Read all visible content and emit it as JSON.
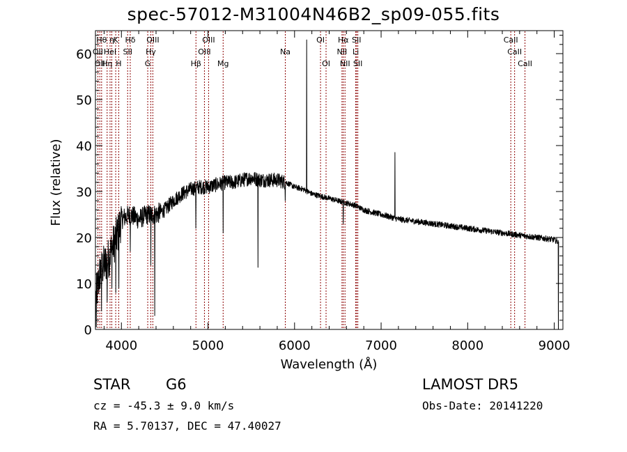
{
  "chart_data": {
    "type": "line",
    "title": "spec-57012-M31004N46B2_sp09-055.fits",
    "xlabel": "Wavelength (Å)",
    "ylabel": "Flux (relative)",
    "xlim": [
      3700,
      9100
    ],
    "ylim": [
      0,
      65
    ],
    "xticks": [
      4000,
      5000,
      6000,
      7000,
      8000,
      9000
    ],
    "yticks": [
      0,
      10,
      20,
      30,
      40,
      50,
      60
    ],
    "grid": false,
    "line_color": "#000000",
    "marker_color": "#8b0000",
    "continuum_knots": [
      [
        3705,
        7
      ],
      [
        3760,
        13
      ],
      [
        3840,
        15
      ],
      [
        3900,
        18
      ],
      [
        3960,
        21
      ],
      [
        4000,
        24
      ],
      [
        4100,
        25
      ],
      [
        4200,
        24
      ],
      [
        4300,
        25
      ],
      [
        4400,
        25
      ],
      [
        4500,
        26
      ],
      [
        4600,
        28
      ],
      [
        4700,
        29.5
      ],
      [
        4800,
        30.5
      ],
      [
        4900,
        31
      ],
      [
        5000,
        31
      ],
      [
        5100,
        31.5
      ],
      [
        5200,
        32
      ],
      [
        5300,
        32
      ],
      [
        5400,
        32.5
      ],
      [
        5500,
        33
      ],
      [
        5600,
        32.5
      ],
      [
        5700,
        32.5
      ],
      [
        5800,
        32.5
      ],
      [
        5900,
        32
      ],
      [
        6000,
        31
      ],
      [
        6100,
        30.5
      ],
      [
        6200,
        29.5
      ],
      [
        6300,
        29
      ],
      [
        6400,
        28.5
      ],
      [
        6500,
        28
      ],
      [
        6600,
        27.5
      ],
      [
        6700,
        27
      ],
      [
        6800,
        26
      ],
      [
        6900,
        25.5
      ],
      [
        7000,
        25
      ],
      [
        7100,
        24.5
      ],
      [
        7200,
        24
      ],
      [
        7400,
        23.5
      ],
      [
        7600,
        23
      ],
      [
        7800,
        22.5
      ],
      [
        8000,
        22
      ],
      [
        8200,
        21.5
      ],
      [
        8400,
        21
      ],
      [
        8600,
        20.5
      ],
      [
        8800,
        20
      ],
      [
        9000,
        19.5
      ],
      [
        9050,
        19
      ]
    ],
    "features": [
      {
        "x": 3710,
        "y": 0.5
      },
      {
        "x": 3770,
        "y": 4
      },
      {
        "x": 3835,
        "y": 6
      },
      {
        "x": 3889,
        "y": 9
      },
      {
        "x": 3934,
        "y": 8
      },
      {
        "x": 3969,
        "y": 9
      },
      {
        "x": 4102,
        "y": 17
      },
      {
        "x": 4340,
        "y": 14
      },
      {
        "x": 4385,
        "y": 3
      },
      {
        "x": 4861,
        "y": 22
      },
      {
        "x": 5175,
        "y": 21
      },
      {
        "x": 5577,
        "y": 13.5
      },
      {
        "x": 5893,
        "y": 28
      },
      {
        "x": 6140,
        "y": 63
      },
      {
        "x": 6563,
        "y": 23
      },
      {
        "x": 7160,
        "y": 38.5
      },
      {
        "x": 9048,
        "y": 0
      }
    ],
    "line_markers": [
      {
        "wavelength": 3728,
        "row": 2,
        "label": "OII"
      },
      {
        "wavelength": 3750,
        "row": 3,
        "label": "OII"
      },
      {
        "wavelength": 3771,
        "row": 1,
        "label": "Hθ"
      },
      {
        "wavelength": 3835,
        "row": 3,
        "label": "Hη"
      },
      {
        "wavelength": 3869,
        "row": 2,
        "label": "HeI"
      },
      {
        "wavelength": 3889,
        "row": 1,
        "label": "η"
      },
      {
        "wavelength": 3934,
        "row": 1,
        "label": "K"
      },
      {
        "wavelength": 3969,
        "row": 3,
        "label": "H"
      },
      {
        "wavelength": 4072,
        "row": 2,
        "label": "SII"
      },
      {
        "wavelength": 4102,
        "row": 1,
        "label": "Hδ"
      },
      {
        "wavelength": 4304,
        "row": 3,
        "label": "G"
      },
      {
        "wavelength": 4340,
        "row": 2,
        "label": "Hγ"
      },
      {
        "wavelength": 4363,
        "row": 1,
        "label": "OIII"
      },
      {
        "wavelength": 4861,
        "row": 3,
        "label": "Hβ"
      },
      {
        "wavelength": 4959,
        "row": 2,
        "label": "OIII"
      },
      {
        "wavelength": 5007,
        "row": 1,
        "label": "OIII"
      },
      {
        "wavelength": 5175,
        "row": 3,
        "label": "Mg"
      },
      {
        "wavelength": 5893,
        "row": 2,
        "label": "Na"
      },
      {
        "wavelength": 6300,
        "row": 1,
        "label": "OI"
      },
      {
        "wavelength": 6364,
        "row": 3,
        "label": "OI"
      },
      {
        "wavelength": 6548,
        "row": 2,
        "label": "NII"
      },
      {
        "wavelength": 6563,
        "row": 1,
        "label": "Hα"
      },
      {
        "wavelength": 6583,
        "row": 3,
        "label": "NII"
      },
      {
        "wavelength": 6707,
        "row": 2,
        "label": "Li"
      },
      {
        "wavelength": 6716,
        "row": 1,
        "label": "SII"
      },
      {
        "wavelength": 6731,
        "row": 3,
        "label": "SII"
      },
      {
        "wavelength": 8498,
        "row": 1,
        "label": "CaII"
      },
      {
        "wavelength": 8542,
        "row": 2,
        "label": "CaII"
      },
      {
        "wavelength": 8662,
        "row": 3,
        "label": "CaII"
      }
    ]
  },
  "info": {
    "class": "STAR",
    "subclass": "G6",
    "survey": "LAMOST DR5",
    "cz": "cz = -45.3 ± 9.0 km/s",
    "obs_date": "Obs-Date: 20141220",
    "radec": "RA =   5.70137, DEC =  47.40027"
  }
}
